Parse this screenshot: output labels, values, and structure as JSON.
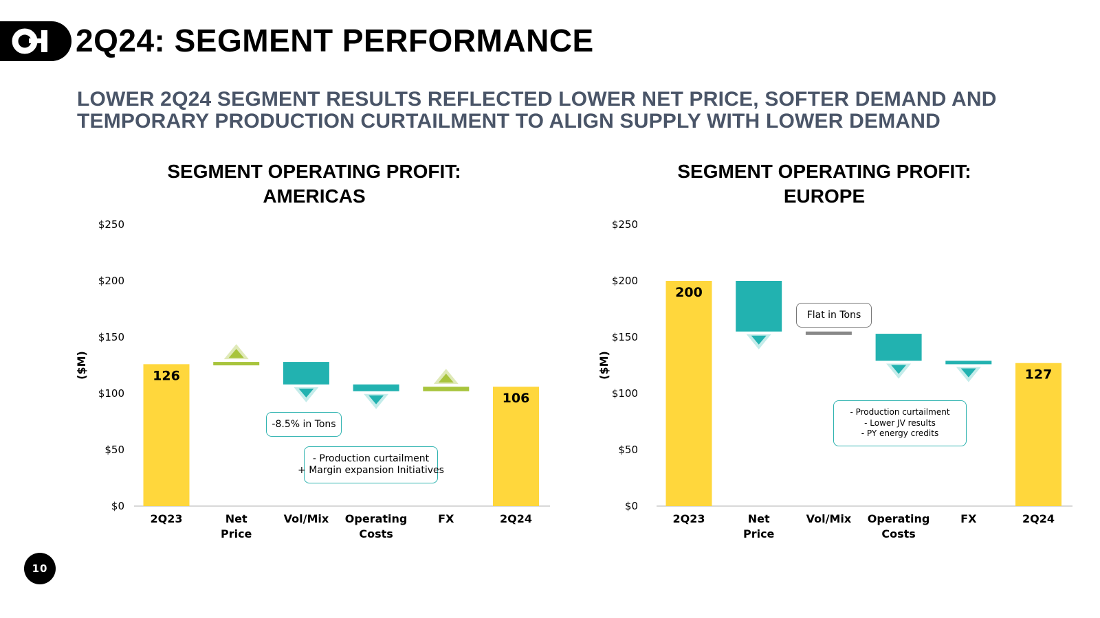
{
  "header": {
    "title": "2Q24: SEGMENT PERFORMANCE",
    "logo_icon": "oi-logo-icon"
  },
  "subtitle": {
    "line1": "LOWER 2Q24 SEGMENT RESULTS REFLECTED LOWER NET PRICE,  SOFTER DEMAND AND",
    "line2": "TEMPORARY PRODUCTION CURTAILMENT TO ALIGN SUPPLY WITH LOWER DEMAND"
  },
  "colors": {
    "total_bar": "#ffd73c",
    "decrease_bar": "#22b2b0",
    "increase_bar": "#a8c43c",
    "neutral_bar": "#888888",
    "axis": "#cccccc",
    "subtitle": "#4a5568"
  },
  "chart_data": [
    {
      "id": "americas",
      "type": "waterfall",
      "title_line1": "SEGMENT OPERATING PROFIT:",
      "title_line2": "AMERICAS",
      "ylabel": "($M)",
      "ylim": [
        0,
        250
      ],
      "yticks": [
        "$0",
        "$50",
        "$100",
        "$150",
        "$200",
        "$250"
      ],
      "categories": [
        [
          "2Q23"
        ],
        [
          "Net",
          "Price"
        ],
        [
          "Vol/Mix"
        ],
        [
          "Operating",
          "Costs"
        ],
        [
          "FX"
        ],
        [
          "2Q24"
        ]
      ],
      "steps": [
        {
          "kind": "total",
          "value": 126,
          "label": "126"
        },
        {
          "kind": "increase",
          "delta": 2
        },
        {
          "kind": "decrease",
          "delta": -20
        },
        {
          "kind": "decrease",
          "delta": -6
        },
        {
          "kind": "increase",
          "delta": 4
        },
        {
          "kind": "total",
          "value": 106,
          "label": "106"
        }
      ],
      "callouts": [
        {
          "lines": [
            "-8.5% in Tons"
          ]
        },
        {
          "lines": [
            "- Production curtailment",
            "+ Margin expansion Initiatives"
          ]
        }
      ]
    },
    {
      "id": "europe",
      "type": "waterfall",
      "title_line1": "SEGMENT OPERATING PROFIT:",
      "title_line2": "EUROPE",
      "ylabel": "($M)",
      "ylim": [
        0,
        250
      ],
      "yticks": [
        "$0",
        "$50",
        "$100",
        "$150",
        "$200",
        "$250"
      ],
      "categories": [
        [
          "2Q23"
        ],
        [
          "Net",
          "Price"
        ],
        [
          "Vol/Mix"
        ],
        [
          "Operating",
          "Costs"
        ],
        [
          "FX"
        ],
        [
          "2Q24"
        ]
      ],
      "steps": [
        {
          "kind": "total",
          "value": 200,
          "label": "200"
        },
        {
          "kind": "decrease",
          "delta": -45
        },
        {
          "kind": "neutral",
          "delta": -2
        },
        {
          "kind": "decrease",
          "delta": -24
        },
        {
          "kind": "decrease",
          "delta": -2
        },
        {
          "kind": "total",
          "value": 127,
          "label": "127"
        }
      ],
      "callouts": [
        {
          "lines": [
            "Flat in Tons"
          ]
        },
        {
          "lines": [
            "- Production curtailment",
            "- Lower JV results",
            "- PY energy credits"
          ]
        }
      ]
    }
  ],
  "footer": {
    "page_number": "10"
  }
}
